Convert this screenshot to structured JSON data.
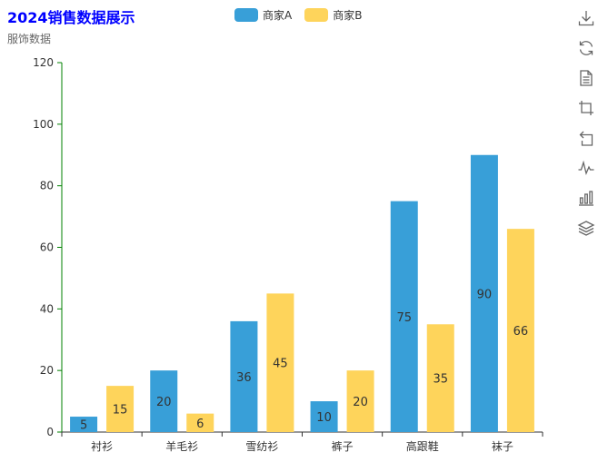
{
  "title": "2024销售数据展示",
  "subtitle": "服饰数据",
  "legend": [
    {
      "name": "商家A",
      "color": "#389fd8"
    },
    {
      "name": "商家B",
      "color": "#fed45b"
    }
  ],
  "toolbox": [
    {
      "name": "download-icon"
    },
    {
      "name": "refresh-icon"
    },
    {
      "name": "data-view-icon"
    },
    {
      "name": "zoom-icon"
    },
    {
      "name": "zoom-reset-icon"
    },
    {
      "name": "line-chart-icon"
    },
    {
      "name": "bar-chart-icon"
    },
    {
      "name": "stack-icon"
    }
  ],
  "chart_data": {
    "type": "bar",
    "categories": [
      "衬衫",
      "羊毛衫",
      "雪纺衫",
      "裤子",
      "高跟鞋",
      "袜子"
    ],
    "series": [
      {
        "name": "商家A",
        "values": [
          5,
          20,
          36,
          10,
          75,
          90
        ],
        "color": "#389fd8"
      },
      {
        "name": "商家B",
        "values": [
          15,
          6,
          45,
          20,
          35,
          66
        ],
        "color": "#fed45b"
      }
    ],
    "ylim": [
      0,
      120
    ],
    "yticks": [
      0,
      20,
      40,
      60,
      80,
      100,
      120
    ],
    "axis_color": "#008000",
    "grid": false,
    "legend_position": "top-center",
    "data_labels": "inside"
  }
}
